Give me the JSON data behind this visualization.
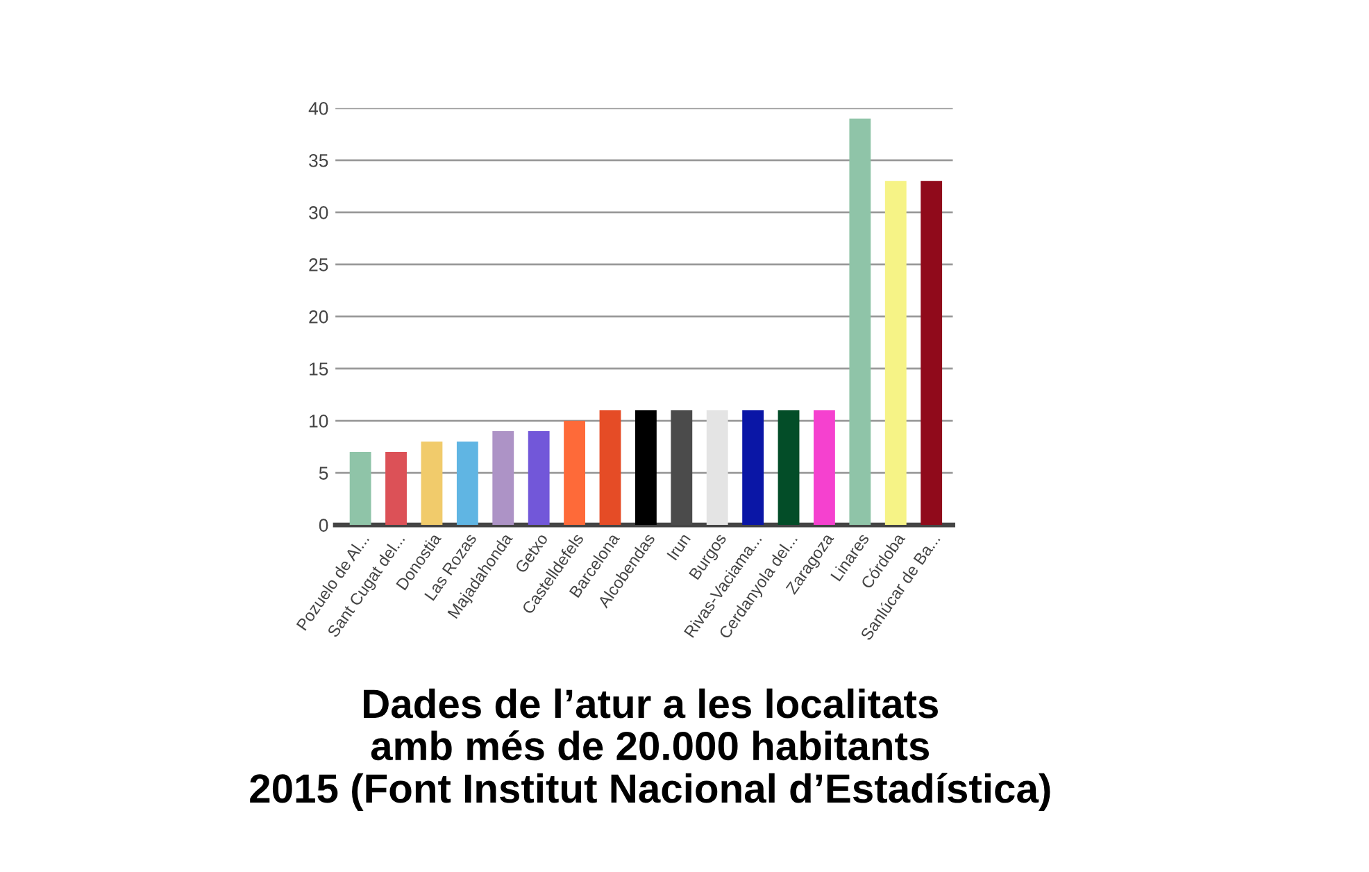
{
  "chart_data": {
    "type": "bar",
    "title": "Dades de l’atur a les localitats\namb més de 20.000 habitants\n2015 (Font Institut Nacional d’Estadística)",
    "categories": [
      "Pozuelo de Al...",
      "Sant Cugat del...",
      "Donostia",
      "Las Rozas",
      "Majadahonda",
      "Getxo",
      "Castelldefels",
      "Barcelona",
      "Alcobendas",
      "Irun",
      "Burgos",
      "Rivas-Vaciama...",
      "Cerdanyola del...",
      "Zaragoza",
      "Linares",
      "Córdoba",
      "Sanlúcar de Ba..."
    ],
    "values": [
      7,
      7,
      8,
      8,
      9,
      9,
      10,
      11,
      11,
      11,
      11,
      11,
      11,
      11,
      39,
      33,
      33
    ],
    "colors": [
      "#8fc4a8",
      "#dc5157",
      "#f1cb6b",
      "#60b5e3",
      "#ad93c6",
      "#7257d9",
      "#fe6a39",
      "#e54c26",
      "#000000",
      "#4b4b4b",
      "#e4e4e4",
      "#0a16a6",
      "#034d28",
      "#f541cf",
      "#8fc4a8",
      "#f6f386",
      "#900a1b"
    ],
    "ylim": [
      0,
      40
    ],
    "yticks": [
      0,
      5,
      10,
      15,
      20,
      25,
      30,
      35,
      40
    ],
    "grid": "y"
  }
}
